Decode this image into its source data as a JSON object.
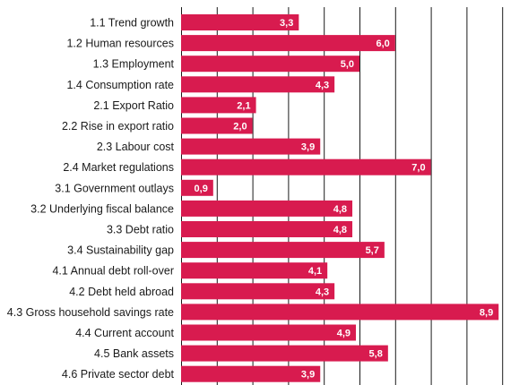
{
  "chart_data": {
    "type": "bar",
    "orientation": "horizontal",
    "categories": [
      "1.1 Trend growth",
      "1.2 Human resources",
      "1.3 Employment",
      "1.4 Consumption rate",
      "2.1 Export Ratio",
      "2.2 Rise in export ratio",
      "2.3 Labour cost",
      "2.4 Market regulations",
      "3.1 Government outlays",
      "3.2 Underlying fiscal balance",
      "3.3 Debt ratio",
      "3.4 Sustainability gap",
      "4.1 Annual debt roll-over",
      "4.2 Debt held abroad",
      "4.3 Gross household savings rate",
      "4.4 Current account",
      "4.5 Bank assets",
      "4.6 Private sector debt"
    ],
    "values": [
      3.3,
      6.0,
      5.0,
      4.3,
      2.1,
      2.0,
      3.9,
      7.0,
      0.9,
      4.8,
      4.8,
      5.7,
      4.1,
      4.3,
      8.9,
      4.9,
      5.8,
      3.9
    ],
    "value_labels": [
      "3,3",
      "6,0",
      "5,0",
      "4,3",
      "2,1",
      "2,0",
      "3,9",
      "7,0",
      "0,9",
      "4,8",
      "4,8",
      "5,7",
      "4,1",
      "4,3",
      "8,9",
      "4,9",
      "5,8",
      "3,9"
    ],
    "xlim": [
      0,
      9
    ],
    "grid": true,
    "bar_color": "#d81b4f",
    "label_color": "#ffffff"
  }
}
